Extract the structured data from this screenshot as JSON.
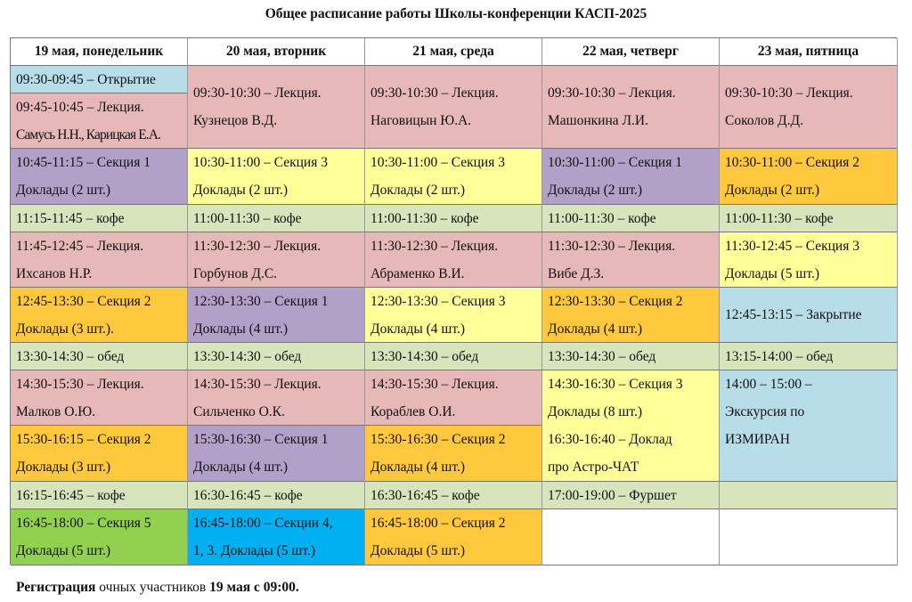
{
  "title": "Общее расписание работы Школы-конференции КАСП-2025",
  "colors": {
    "opening": "#b7dde8",
    "lecture": "#e6b8b8",
    "section1": "#b1a0c7",
    "section2": "#ffc83d",
    "section3": "#ffff99",
    "section5": "#92d050",
    "sections_mixed": "#00b0f0",
    "break": "#d8e4bc",
    "excursion": "#b7dde8",
    "empty": "#ffffff"
  },
  "days": [
    {
      "header": "19 мая, понедельник",
      "cells": [
        {
          "color": "opening",
          "lines": [
            "09:30-09:45 – Открытие"
          ]
        },
        {
          "color": "lecture",
          "lines": [
            "09:45-10:45 – Лекция.",
            "Самусь Н.Н., Карицкая Е.А."
          ]
        },
        {
          "color": "section1",
          "lines": [
            "10:45-11:15 – Секция 1",
            "Доклады (2 шт.)"
          ]
        },
        {
          "color": "break",
          "lines": [
            "11:15-11:45 – кофе"
          ]
        },
        {
          "color": "lecture",
          "lines": [
            "11:45-12:45 – Лекция.",
            "Ихсанов Н.Р."
          ]
        },
        {
          "color": "section2",
          "lines": [
            "12:45-13:30 – Секция 2",
            "Доклады (3 шт.)."
          ]
        },
        {
          "color": "break",
          "lines": [
            "13:30-14:30 – обед"
          ]
        },
        {
          "color": "lecture",
          "lines": [
            "14:30-15:30 – Лекция.",
            "Малков О.Ю."
          ]
        },
        {
          "color": "section2",
          "lines": [
            "15:30-16:15 – Секция 2",
            "Доклады (3 шт.)"
          ]
        },
        {
          "color": "break",
          "lines": [
            "16:15-16:45 – кофе"
          ]
        },
        {
          "color": "section5",
          "lines": [
            "16:45-18:00 – Секция 5",
            "Доклады (5 шт.)"
          ]
        }
      ]
    },
    {
      "header": "20 мая, вторник",
      "cells": [
        {
          "color": "lecture",
          "lines": [
            "09:30-10:30 – Лекция.",
            "Кузнецов В.Д."
          ]
        },
        {
          "color": "section3",
          "lines": [
            "10:30-11:00 – Секция 3",
            "Доклады (2 шт.)"
          ]
        },
        {
          "color": "break",
          "lines": [
            "11:00-11:30 – кофе"
          ]
        },
        {
          "color": "lecture",
          "lines": [
            "11:30-12:30 – Лекция.",
            "Горбунов Д.С."
          ]
        },
        {
          "color": "section1",
          "lines": [
            "12:30-13:30 – Секция 1",
            "Доклады (4 шт.)"
          ]
        },
        {
          "color": "break",
          "lines": [
            "13:30-14:30 – обед"
          ]
        },
        {
          "color": "lecture",
          "lines": [
            "14:30-15:30 – Лекция.",
            "Сильченко О.К."
          ]
        },
        {
          "color": "section1",
          "lines": [
            "15:30-16:30 – Секция 1",
            "Доклады (4 шт.)"
          ]
        },
        {
          "color": "break",
          "lines": [
            "16:30-16:45 – кофе"
          ]
        },
        {
          "color": "sections_mixed",
          "lines": [
            "16:45-18:00 – Секции 4,",
            "1, 3. Доклады (5 шт.)"
          ]
        }
      ]
    },
    {
      "header": "21 мая, среда",
      "cells": [
        {
          "color": "lecture",
          "lines": [
            "09:30-10:30 – Лекция.",
            "Наговицын Ю.А."
          ]
        },
        {
          "color": "section3",
          "lines": [
            "10:30-11:00 – Секция 3",
            "Доклады (2 шт.)"
          ]
        },
        {
          "color": "break",
          "lines": [
            "11:00-11:30 – кофе"
          ]
        },
        {
          "color": "lecture",
          "lines": [
            "11:30-12:30 – Лекция.",
            "Абраменко В.И."
          ]
        },
        {
          "color": "section3",
          "lines": [
            "12:30-13:30 – Секция 3",
            "Доклады (4 шт.)"
          ]
        },
        {
          "color": "break",
          "lines": [
            "13:30-14:30 – обед"
          ]
        },
        {
          "color": "lecture",
          "lines": [
            "14:30-15:30 – Лекция.",
            "Кораблев О.И."
          ]
        },
        {
          "color": "section2",
          "lines": [
            "15:30-16:30 – Секция 2",
            "Доклады (4 шт.)"
          ]
        },
        {
          "color": "break",
          "lines": [
            "16:30-16:45 – кофе"
          ]
        },
        {
          "color": "section2",
          "lines": [
            "16:45-18:00 – Секция 2",
            "Доклады (5 шт.)"
          ]
        }
      ]
    },
    {
      "header": "22 мая, четверг",
      "cells": [
        {
          "color": "lecture",
          "lines": [
            "09:30-10:30 – Лекция.",
            "Машонкина Л.И."
          ]
        },
        {
          "color": "section1",
          "lines": [
            "10:30-11:00 – Секция 1",
            "Доклады (2 шт.)"
          ]
        },
        {
          "color": "break",
          "lines": [
            "11:00-11:30 – кофе"
          ]
        },
        {
          "color": "lecture",
          "lines": [
            "11:30-12:30 – Лекция.",
            "Вибе Д.З."
          ]
        },
        {
          "color": "section2",
          "lines": [
            "12:30-13:30 – Секция 2",
            "Доклады (4 шт.)"
          ]
        },
        {
          "color": "break",
          "lines": [
            "13:30-14:30 – обед"
          ]
        },
        {
          "color": "section3",
          "lines": [
            "14:30-16:30 – Секция 3",
            "Доклады (8 шт.)",
            "16:30-16:40 – Доклад",
            "про Астро-ЧАТ"
          ]
        },
        {
          "color": "break",
          "lines": [
            "17:00-19:00 – Фуршет"
          ]
        },
        {
          "color": "empty",
          "lines": []
        }
      ]
    },
    {
      "header": "23 мая, пятница",
      "cells": [
        {
          "color": "lecture",
          "lines": [
            "09:30-10:30 – Лекция.",
            "Соколов Д.Д."
          ]
        },
        {
          "color": "section2",
          "lines": [
            "10:30-11:00 – Секция 2",
            "Доклады (2 шт.)"
          ]
        },
        {
          "color": "break",
          "lines": [
            "11:00-11:30 – кофе"
          ]
        },
        {
          "color": "section3",
          "lines": [
            "11:30-12:45 – Секция 3",
            "Доклады (5 шт.)"
          ]
        },
        {
          "color": "excursion",
          "lines": [
            "12:45-13:15 – Закрытие"
          ]
        },
        {
          "color": "break",
          "lines": [
            "13:15-14:00 – обед"
          ]
        },
        {
          "color": "excursion",
          "lines": [
            "14:00 – 15:00 –",
            "Экскурсия по",
            "ИЗМИРАН"
          ]
        },
        {
          "color": "break",
          "lines": []
        },
        {
          "color": "empty",
          "lines": []
        }
      ]
    }
  ],
  "footer": {
    "bold1": "Регистрация",
    "text": " очных участников ",
    "bold2": "19 мая с 09:00."
  }
}
